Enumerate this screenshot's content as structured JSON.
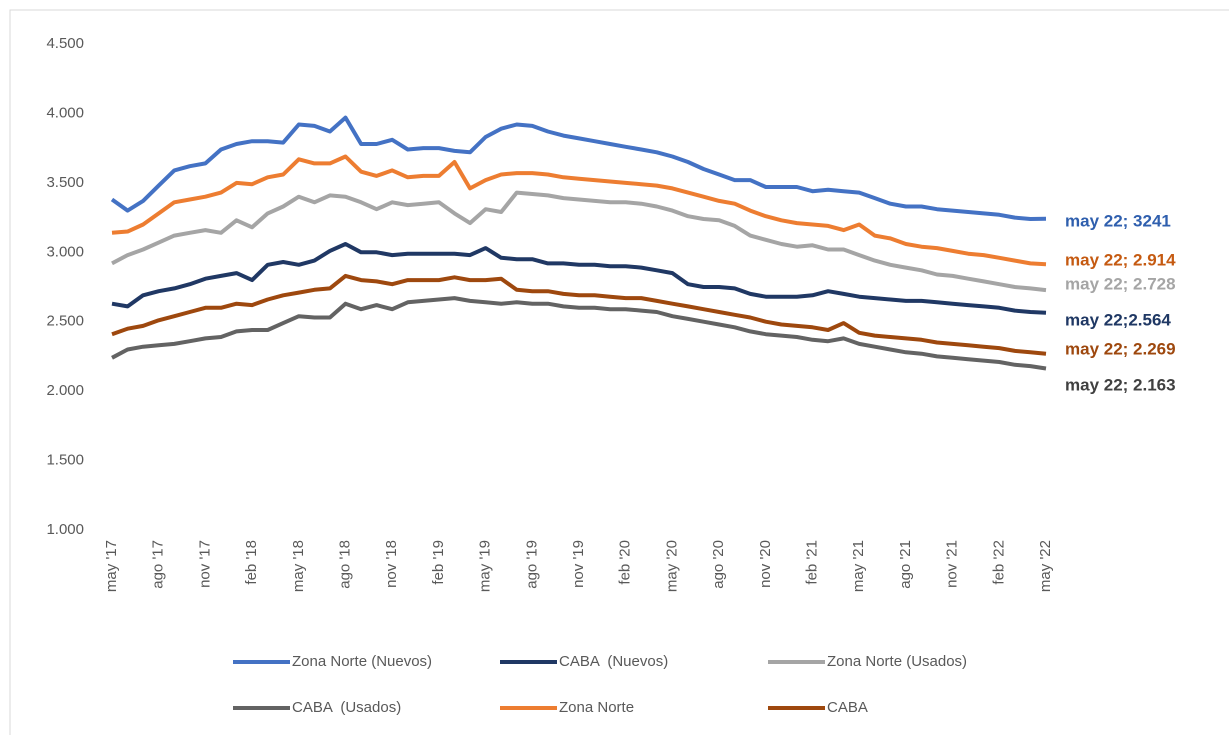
{
  "chart_data": {
    "type": "line",
    "categories": [
      "may '17",
      null,
      null,
      "ago '17",
      null,
      null,
      "nov '17",
      null,
      null,
      "feb '18",
      null,
      null,
      "may '18",
      null,
      null,
      "ago '18",
      null,
      null,
      "nov '18",
      null,
      null,
      "feb '19",
      null,
      null,
      "may '19",
      null,
      null,
      "ago '19",
      null,
      null,
      "nov '19",
      null,
      null,
      "feb '20",
      null,
      null,
      "may '20",
      null,
      null,
      "ago '20",
      null,
      null,
      "nov '20",
      null,
      null,
      "feb '21",
      null,
      null,
      "may '21",
      null,
      null,
      "ago '21",
      null,
      null,
      "nov '21",
      null,
      null,
      "feb '22",
      null,
      null,
      "may '22"
    ],
    "ylim": [
      1000,
      4500
    ],
    "yticks": [
      {
        "value": 1000,
        "label": "1.000"
      },
      {
        "value": 1500,
        "label": "1.500"
      },
      {
        "value": 2000,
        "label": "2.000"
      },
      {
        "value": 2500,
        "label": "2.500"
      },
      {
        "value": 3000,
        "label": "3.000"
      },
      {
        "value": 3500,
        "label": "3.500"
      },
      {
        "value": 4000,
        "label": "4.000"
      },
      {
        "value": 4500,
        "label": "4.500"
      }
    ],
    "grid": false,
    "legend": "bottom",
    "series": [
      {
        "name": "Zona Norte (Nuevos)",
        "color": "#4472c4",
        "label_color": "#2f5fae",
        "values": [
          3380,
          3300,
          3370,
          3480,
          3590,
          3620,
          3640,
          3740,
          3780,
          3800,
          3800,
          3790,
          3920,
          3910,
          3870,
          3970,
          3780,
          3780,
          3810,
          3740,
          3750,
          3750,
          3730,
          3720,
          3830,
          3890,
          3920,
          3910,
          3870,
          3840,
          3820,
          3800,
          3780,
          3760,
          3740,
          3720,
          3690,
          3650,
          3600,
          3560,
          3520,
          3520,
          3470,
          3470,
          3470,
          3440,
          3450,
          3440,
          3430,
          3390,
          3350,
          3330,
          3330,
          3310,
          3300,
          3290,
          3280,
          3270,
          3250,
          3240,
          3241
        ],
        "value_labels": [
          null,
          null,
          null,
          null,
          null,
          null,
          null,
          null,
          null,
          null,
          null,
          null,
          null,
          null,
          null,
          null,
          null,
          null,
          null,
          null,
          null,
          null,
          null,
          null,
          null,
          null,
          null,
          null,
          null,
          null,
          null,
          null,
          null,
          null,
          null,
          null,
          null,
          null,
          null,
          null,
          null,
          null,
          null,
          null,
          null,
          null,
          null,
          null,
          null,
          null,
          null,
          null,
          null,
          null,
          null,
          null,
          null,
          null,
          null,
          null,
          "may 22; 3241"
        ]
      },
      {
        "name": "CABA  (Nuevos)",
        "color": "#203864",
        "label_color": "#1f3864",
        "values": [
          2630,
          2610,
          2690,
          2720,
          2740,
          2770,
          2810,
          2830,
          2850,
          2800,
          2910,
          2930,
          2910,
          2940,
          3010,
          3060,
          3000,
          3000,
          2980,
          2990,
          2990,
          2990,
          2990,
          2980,
          3030,
          2960,
          2950,
          2950,
          2920,
          2920,
          2910,
          2910,
          2900,
          2900,
          2890,
          2870,
          2850,
          2770,
          2750,
          2750,
          2740,
          2700,
          2680,
          2680,
          2680,
          2690,
          2720,
          2700,
          2680,
          2670,
          2660,
          2650,
          2650,
          2640,
          2630,
          2620,
          2610,
          2600,
          2580,
          2570,
          2564
        ],
        "value_labels": [
          null,
          null,
          null,
          null,
          null,
          null,
          null,
          null,
          null,
          null,
          null,
          null,
          null,
          null,
          null,
          null,
          null,
          null,
          null,
          null,
          null,
          null,
          null,
          null,
          null,
          null,
          null,
          null,
          null,
          null,
          null,
          null,
          null,
          null,
          null,
          null,
          null,
          null,
          null,
          null,
          null,
          null,
          null,
          null,
          null,
          null,
          null,
          null,
          null,
          null,
          null,
          null,
          null,
          null,
          null,
          null,
          null,
          null,
          null,
          null,
          "may 22;2.564"
        ]
      },
      {
        "name": "Zona Norte (Usados)",
        "color": "#a5a5a5",
        "label_color": "#a5a5a5",
        "values": [
          2920,
          2980,
          3020,
          3070,
          3120,
          3140,
          3160,
          3140,
          3230,
          3180,
          3280,
          3330,
          3400,
          3360,
          3410,
          3400,
          3360,
          3310,
          3360,
          3340,
          3350,
          3360,
          3280,
          3210,
          3310,
          3290,
          3430,
          3420,
          3410,
          3390,
          3380,
          3370,
          3360,
          3360,
          3350,
          3330,
          3300,
          3260,
          3240,
          3230,
          3190,
          3120,
          3090,
          3060,
          3040,
          3050,
          3020,
          3020,
          2980,
          2940,
          2910,
          2890,
          2870,
          2840,
          2830,
          2810,
          2790,
          2770,
          2750,
          2740,
          2728
        ],
        "value_labels": [
          null,
          null,
          null,
          null,
          null,
          null,
          null,
          null,
          null,
          null,
          null,
          null,
          null,
          null,
          null,
          null,
          null,
          null,
          null,
          null,
          null,
          null,
          null,
          null,
          null,
          null,
          null,
          null,
          null,
          null,
          null,
          null,
          null,
          null,
          null,
          null,
          null,
          null,
          null,
          null,
          null,
          null,
          null,
          null,
          null,
          null,
          null,
          null,
          null,
          null,
          null,
          null,
          null,
          null,
          null,
          null,
          null,
          null,
          null,
          null,
          "may 22; 2.728"
        ]
      },
      {
        "name": "CABA  (Usados)",
        "color": "#636363",
        "label_color": "#404040",
        "values": [
          2240,
          2300,
          2320,
          2330,
          2340,
          2360,
          2380,
          2390,
          2430,
          2440,
          2440,
          2490,
          2540,
          2530,
          2530,
          2630,
          2590,
          2620,
          2590,
          2640,
          2650,
          2660,
          2670,
          2650,
          2640,
          2630,
          2640,
          2630,
          2630,
          2610,
          2600,
          2600,
          2590,
          2590,
          2580,
          2570,
          2540,
          2520,
          2500,
          2480,
          2460,
          2430,
          2410,
          2400,
          2390,
          2370,
          2360,
          2380,
          2340,
          2320,
          2300,
          2280,
          2270,
          2250,
          2240,
          2230,
          2220,
          2210,
          2190,
          2180,
          2163
        ],
        "value_labels": [
          null,
          null,
          null,
          null,
          null,
          null,
          null,
          null,
          null,
          null,
          null,
          null,
          null,
          null,
          null,
          null,
          null,
          null,
          null,
          null,
          null,
          null,
          null,
          null,
          null,
          null,
          null,
          null,
          null,
          null,
          null,
          null,
          null,
          null,
          null,
          null,
          null,
          null,
          null,
          null,
          null,
          null,
          null,
          null,
          null,
          null,
          null,
          null,
          null,
          null,
          null,
          null,
          null,
          null,
          null,
          null,
          null,
          null,
          null,
          null,
          "may 22; 2.163"
        ]
      },
      {
        "name": "Zona Norte",
        "color": "#ed7d31",
        "label_color": "#c55a11",
        "values": [
          3140,
          3150,
          3200,
          3280,
          3360,
          3380,
          3400,
          3430,
          3500,
          3490,
          3540,
          3560,
          3670,
          3640,
          3640,
          3690,
          3580,
          3550,
          3590,
          3540,
          3550,
          3550,
          3650,
          3460,
          3520,
          3560,
          3570,
          3570,
          3560,
          3540,
          3530,
          3520,
          3510,
          3500,
          3490,
          3480,
          3460,
          3430,
          3400,
          3370,
          3350,
          3300,
          3260,
          3230,
          3210,
          3200,
          3190,
          3160,
          3200,
          3120,
          3100,
          3060,
          3040,
          3030,
          3010,
          2990,
          2980,
          2960,
          2940,
          2920,
          2914
        ],
        "value_labels": [
          null,
          null,
          null,
          null,
          null,
          null,
          null,
          null,
          null,
          null,
          null,
          null,
          null,
          null,
          null,
          null,
          null,
          null,
          null,
          null,
          null,
          null,
          null,
          null,
          null,
          null,
          null,
          null,
          null,
          null,
          null,
          null,
          null,
          null,
          null,
          null,
          null,
          null,
          null,
          null,
          null,
          null,
          null,
          null,
          null,
          null,
          null,
          null,
          null,
          null,
          null,
          null,
          null,
          null,
          null,
          null,
          null,
          null,
          null,
          null,
          "may 22; 2.914"
        ]
      },
      {
        "name": "CABA",
        "color": "#9e480e",
        "label_color": "#9e480e",
        "values": [
          2410,
          2450,
          2470,
          2510,
          2540,
          2570,
          2600,
          2600,
          2630,
          2620,
          2660,
          2690,
          2710,
          2730,
          2740,
          2830,
          2800,
          2790,
          2770,
          2800,
          2800,
          2800,
          2820,
          2800,
          2800,
          2810,
          2730,
          2720,
          2720,
          2700,
          2690,
          2690,
          2680,
          2670,
          2670,
          2650,
          2630,
          2610,
          2590,
          2570,
          2550,
          2530,
          2500,
          2480,
          2470,
          2460,
          2440,
          2490,
          2420,
          2400,
          2390,
          2380,
          2370,
          2350,
          2340,
          2330,
          2320,
          2310,
          2290,
          2280,
          2269
        ],
        "value_labels": [
          null,
          null,
          null,
          null,
          null,
          null,
          null,
          null,
          null,
          null,
          null,
          null,
          null,
          null,
          null,
          null,
          null,
          null,
          null,
          null,
          null,
          null,
          null,
          null,
          null,
          null,
          null,
          null,
          null,
          null,
          null,
          null,
          null,
          null,
          null,
          null,
          null,
          null,
          null,
          null,
          null,
          null,
          null,
          null,
          null,
          null,
          null,
          null,
          null,
          null,
          null,
          null,
          null,
          null,
          null,
          null,
          null,
          null,
          null,
          null,
          "may 22; 2.269"
        ]
      }
    ]
  }
}
